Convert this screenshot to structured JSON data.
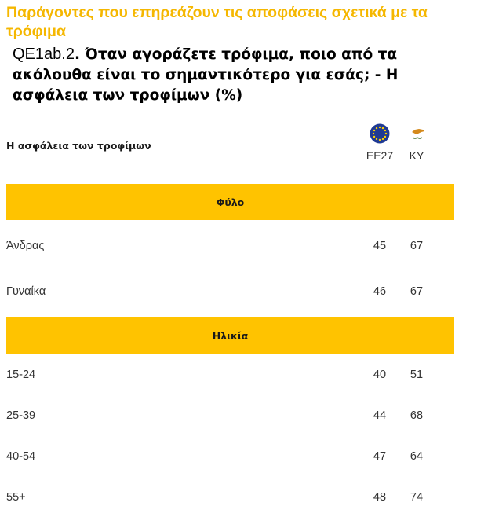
{
  "title": "Παράγοντες που επηρεάζουν τις αποφάσεις σχετικά με τα τρόφιμα",
  "question": {
    "code": "QE1ab.2",
    "text": ". Όταν αγοράζετε τρόφιμα, ποιο από τα ακόλουθα είναι το σημαντικότερο για εσάς; - Η ασφάλεια των τροφίμων (%)"
  },
  "table": {
    "subheader": "Η ασφάλεια των τροφίμων",
    "columns": [
      {
        "label": "ΕΕ27",
        "icon": "eu-flag-icon"
      },
      {
        "label": "ΚΥ",
        "icon": "cyprus-flag-icon"
      }
    ],
    "sections": [
      {
        "title": "Φύλο",
        "rows": [
          {
            "label": "Άνδρας",
            "eu27": "45",
            "ky": "67"
          },
          {
            "label": "Γυναίκα",
            "eu27": "46",
            "ky": "67"
          }
        ]
      },
      {
        "title": "Ηλικία",
        "rows": [
          {
            "label": "15-24",
            "eu27": "40",
            "ky": "51"
          },
          {
            "label": "25-39",
            "eu27": "44",
            "ky": "68"
          },
          {
            "label": "40-54",
            "eu27": "47",
            "ky": "64"
          },
          {
            "label": "55+",
            "eu27": "48",
            "ky": "74"
          }
        ]
      }
    ]
  },
  "colors": {
    "accent_title": "#f5b700",
    "band": "#ffc300",
    "eu_blue": "#1f3a93",
    "eu_star": "#ffd200",
    "cyprus_copper": "#d4891a",
    "cyprus_olive": "#4f7a3a"
  }
}
